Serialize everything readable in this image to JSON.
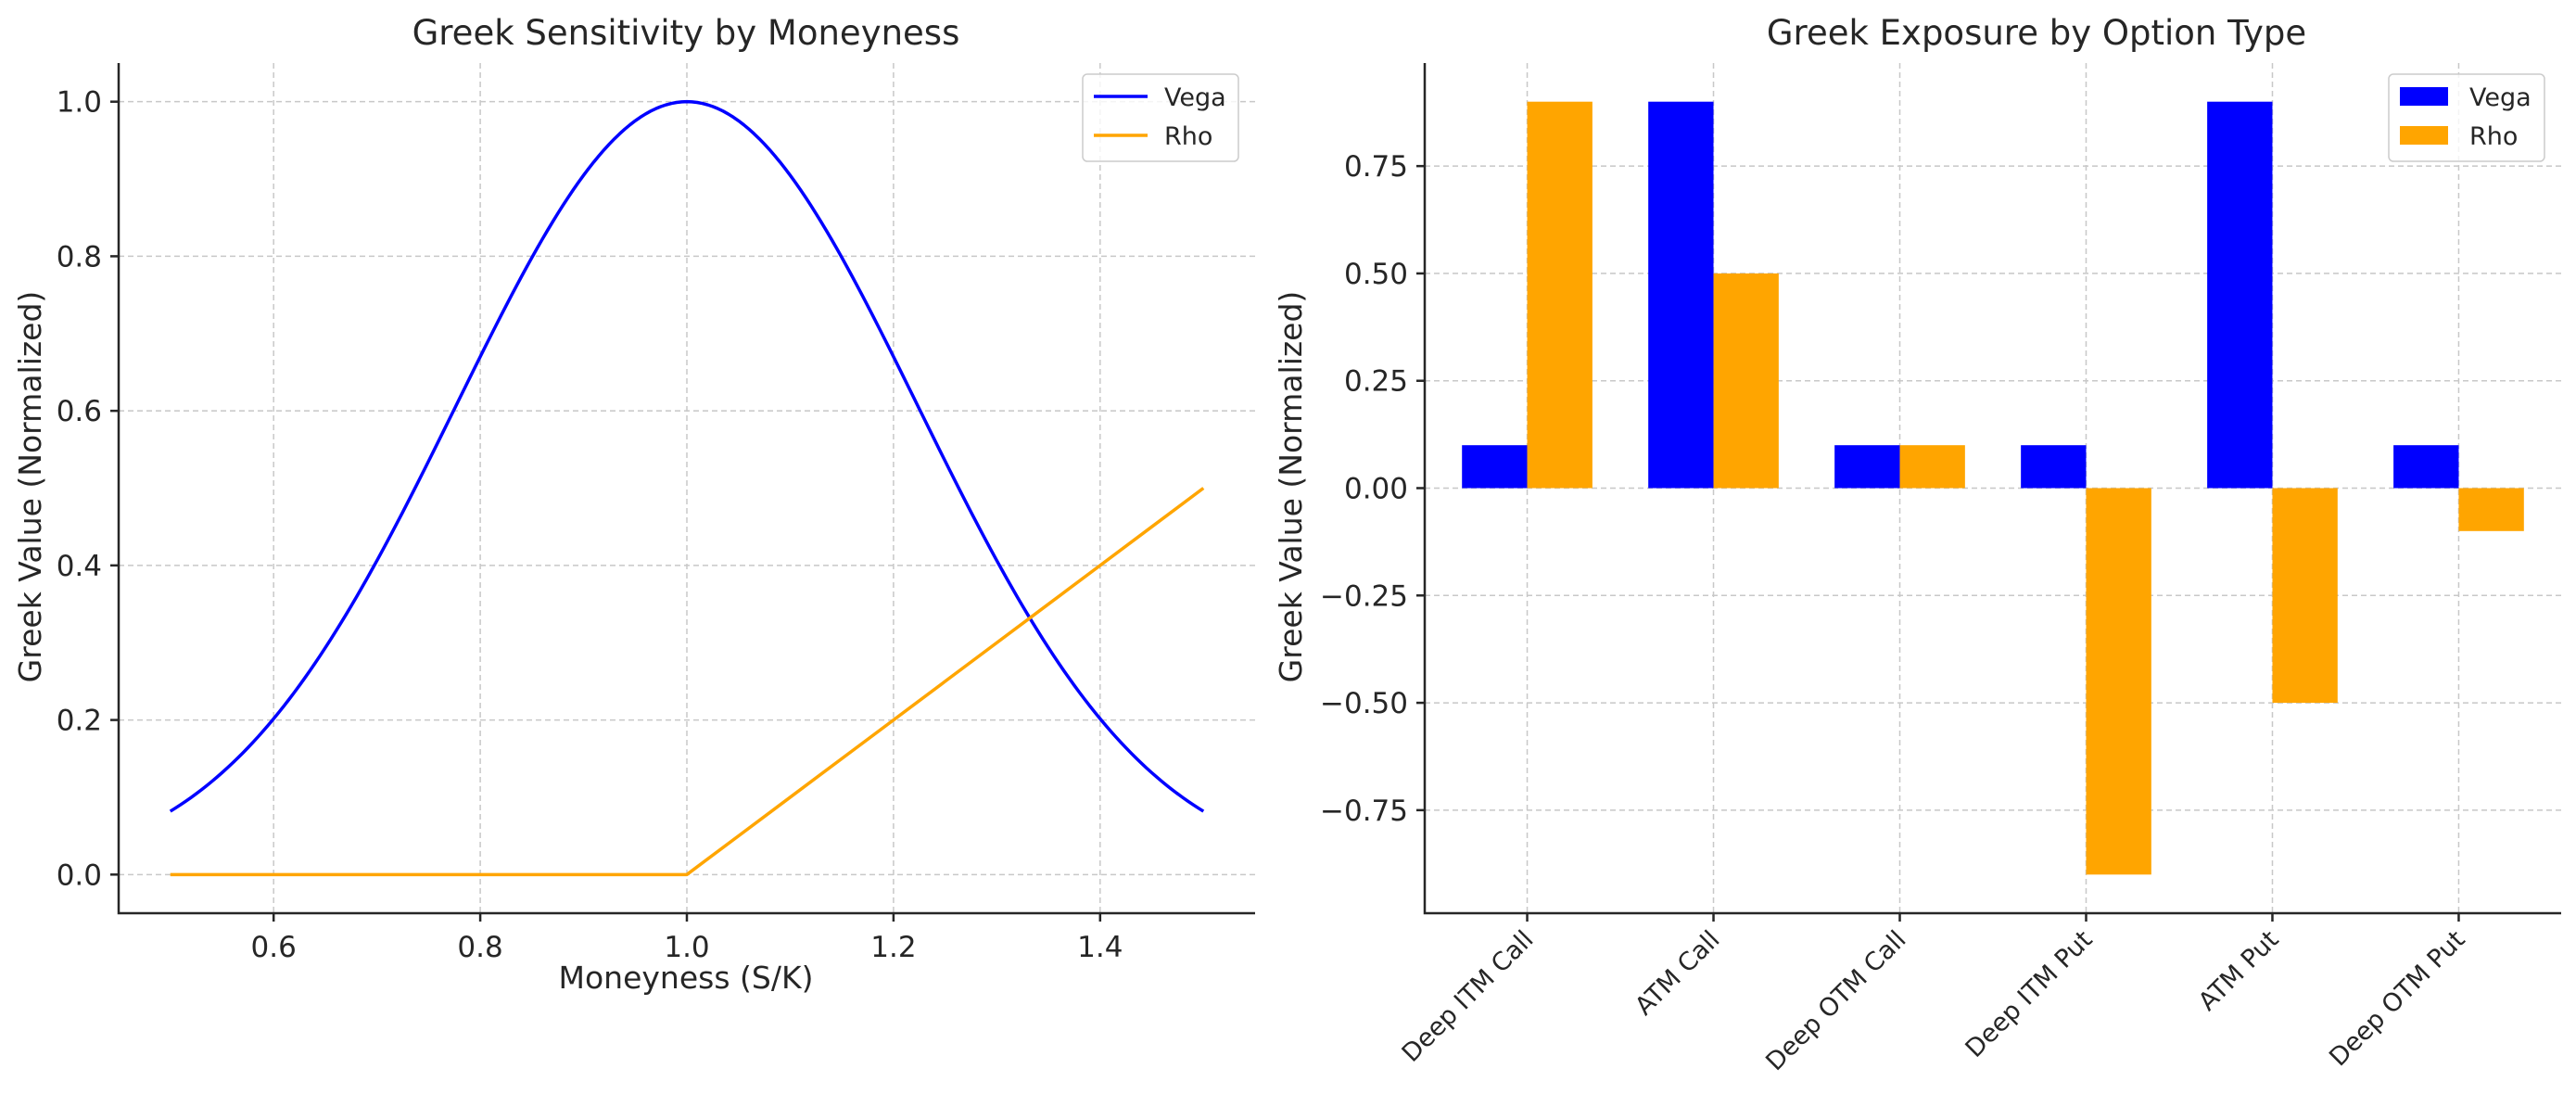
{
  "chart_data": [
    {
      "type": "line",
      "title": "Greek Sensitivity by Moneyness",
      "xlabel": "Moneyness (S/K)",
      "ylabel": "Greek Value (Normalized)",
      "xlim": [
        0.45,
        1.55
      ],
      "ylim": [
        -0.05,
        1.05
      ],
      "xticks": [
        0.6,
        0.8,
        1.0,
        1.2,
        1.4
      ],
      "xtick_labels": [
        "0.6",
        "0.8",
        "1.0",
        "1.2",
        "1.4"
      ],
      "yticks": [
        0.0,
        0.2,
        0.4,
        0.6,
        0.8,
        1.0
      ],
      "ytick_labels": [
        "0.0",
        "0.2",
        "0.4",
        "0.6",
        "0.8",
        "1.0"
      ],
      "grid": true,
      "legend_position": "top-right",
      "x": [
        0.5,
        0.55,
        0.6,
        0.65,
        0.7,
        0.75,
        0.8,
        0.85,
        0.9,
        0.95,
        1.0,
        1.05,
        1.1,
        1.15,
        1.2,
        1.25,
        1.3,
        1.35,
        1.4,
        1.45,
        1.5
      ],
      "series": [
        {
          "name": "Vega",
          "color": "#0000ff",
          "values": [
            0.082,
            0.135,
            0.2,
            0.29,
            0.41,
            0.53,
            0.66,
            0.79,
            0.9,
            0.975,
            1.0,
            0.975,
            0.9,
            0.79,
            0.66,
            0.53,
            0.41,
            0.29,
            0.2,
            0.135,
            0.082
          ]
        },
        {
          "name": "Rho",
          "color": "#ffa500",
          "values": [
            0.0,
            0.0,
            0.0,
            0.0,
            0.0,
            0.0,
            0.0,
            0.0,
            0.0,
            0.0,
            0.0,
            0.05,
            0.1,
            0.15,
            0.2,
            0.25,
            0.3,
            0.35,
            0.4,
            0.45,
            0.5
          ]
        }
      ]
    },
    {
      "type": "bar",
      "title": "Greek Exposure by Option Type",
      "xlabel": "",
      "ylabel": "Greek Value (Normalized)",
      "categories": [
        "Deep ITM Call",
        "ATM Call",
        "Deep OTM Call",
        "Deep ITM Put",
        "ATM Put",
        "Deep OTM Put"
      ],
      "ylim": [
        -0.99,
        0.99
      ],
      "yticks": [
        -0.75,
        -0.5,
        -0.25,
        0.0,
        0.25,
        0.5,
        0.75
      ],
      "ytick_labels": [
        "−0.75",
        "−0.50",
        "−0.25",
        "0.00",
        "0.25",
        "0.50",
        "0.75"
      ],
      "grid": true,
      "legend_position": "top-right",
      "series": [
        {
          "name": "Vega",
          "color": "#0000ff",
          "values": [
            0.1,
            0.9,
            0.1,
            0.1,
            0.9,
            0.1
          ]
        },
        {
          "name": "Rho",
          "color": "#ffa500",
          "values": [
            0.9,
            0.5,
            0.1,
            -0.9,
            -0.5,
            -0.1
          ]
        }
      ]
    }
  ]
}
